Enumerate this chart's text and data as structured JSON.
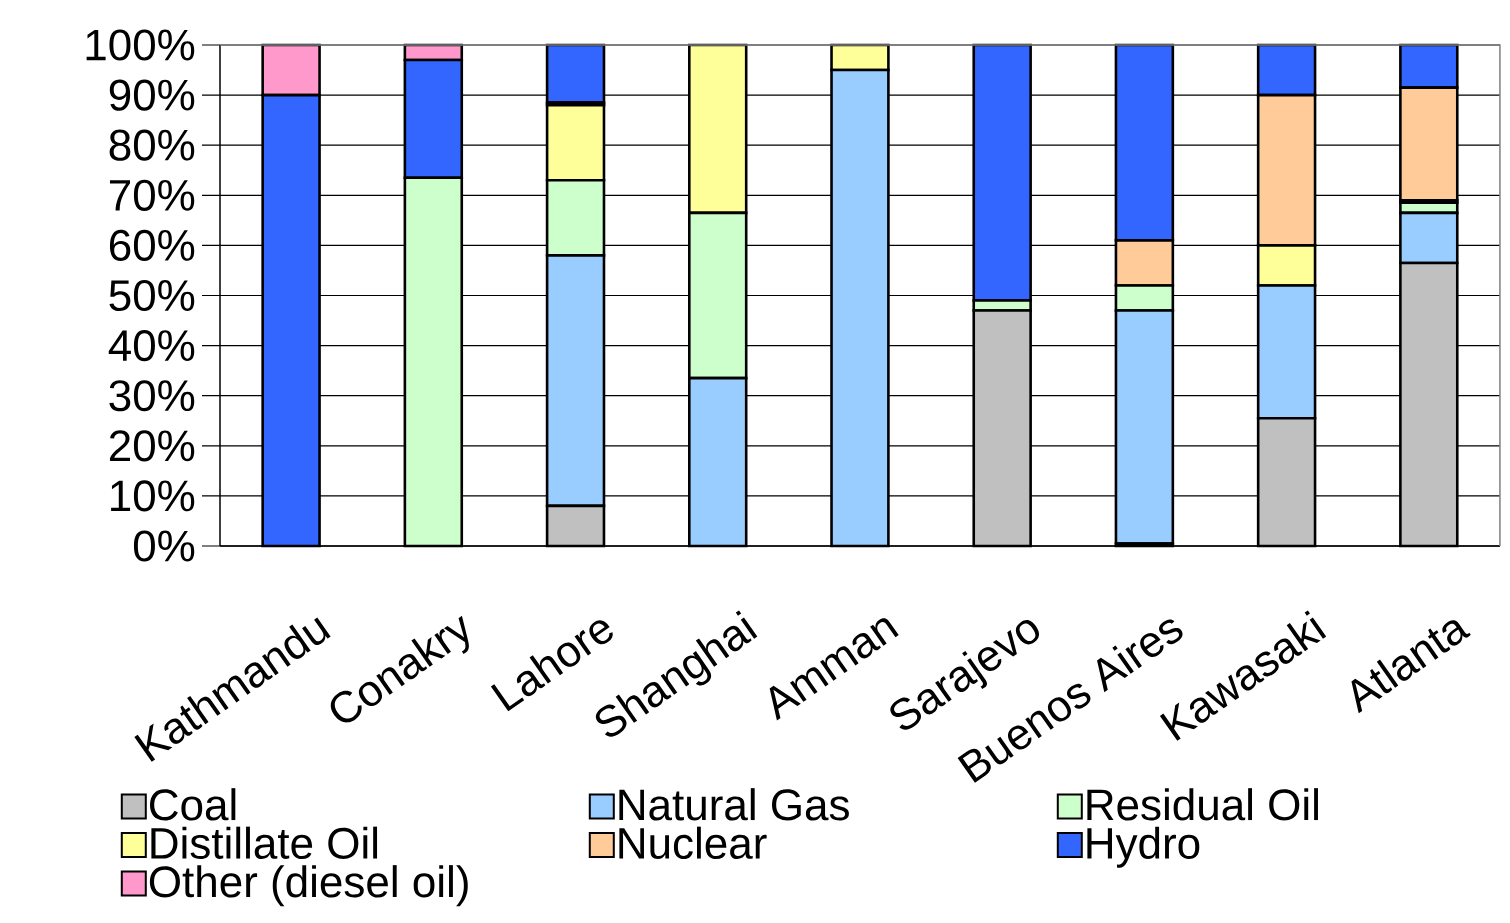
{
  "chart_data": {
    "type": "bar",
    "stacked": true,
    "categories": [
      "Kathmandu",
      "Conakry",
      "Lahore",
      "Shanghai",
      "Amman",
      "Sarajevo",
      "Buenos Aires",
      "Kawasaki",
      "Atlanta"
    ],
    "series": [
      {
        "name": "Coal",
        "color": "#c0c0c0",
        "values": [
          null,
          null,
          8,
          null,
          null,
          47,
          0.5,
          25.5,
          56.5
        ]
      },
      {
        "name": "Natural Gas",
        "color": "#99ccff",
        "values": [
          null,
          null,
          50,
          33.5,
          95,
          null,
          46.5,
          26.5,
          10
        ]
      },
      {
        "name": "Residual Oil",
        "color": "#ccffcc",
        "values": [
          null,
          73.5,
          15,
          33,
          null,
          2,
          5,
          null,
          2
        ]
      },
      {
        "name": "Distillate Oil",
        "color": "#ffff99",
        "values": [
          null,
          null,
          15,
          33.5,
          5,
          null,
          null,
          8,
          0.5
        ]
      },
      {
        "name": "Nuclear",
        "color": "#ffcc99",
        "values": [
          null,
          null,
          0.5,
          null,
          null,
          null,
          9,
          30,
          22.5
        ]
      },
      {
        "name": "Hydro",
        "color": "#3366ff",
        "values": [
          90,
          23.5,
          11.5,
          null,
          null,
          51,
          39,
          10,
          8.5
        ]
      },
      {
        "name": "Other (diesel oil)",
        "color": "#ff99cc",
        "values": [
          10,
          3,
          null,
          null,
          null,
          null,
          null,
          null,
          null
        ]
      }
    ],
    "ylim": [
      0,
      100
    ],
    "yticks": [
      {
        "value": 0,
        "label": "0%"
      },
      {
        "value": 10,
        "label": "10%"
      },
      {
        "value": 20,
        "label": "20%"
      },
      {
        "value": 30,
        "label": "30%"
      },
      {
        "value": 40,
        "label": "40%"
      },
      {
        "value": 50,
        "label": "50%"
      },
      {
        "value": 60,
        "label": "60%"
      },
      {
        "value": 70,
        "label": "70%"
      },
      {
        "value": 80,
        "label": "80%"
      },
      {
        "value": 90,
        "label": "90%"
      },
      {
        "value": 100,
        "label": "100%"
      }
    ],
    "grid": "y",
    "legend": "bottom"
  }
}
